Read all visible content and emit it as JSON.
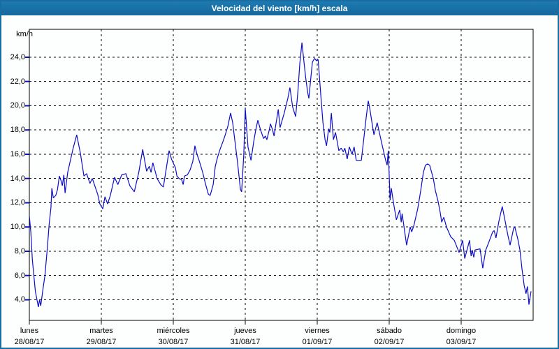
{
  "window": {
    "title": "Velocidad del viento [km/h] escala"
  },
  "y_axis": {
    "unit": "km/h",
    "tick_labels": [
      "24,0",
      "22,0",
      "20,0",
      "18,0",
      "16,0",
      "14,0",
      "12,0",
      "10,0",
      "8,0",
      "6,0",
      "4,0"
    ],
    "tick_values": [
      24,
      22,
      20,
      18,
      16,
      14,
      12,
      10,
      8,
      6,
      4
    ]
  },
  "x_axis": {
    "days": [
      {
        "name": "lunes",
        "date": "28/08/17"
      },
      {
        "name": "martes",
        "date": "29/08/17"
      },
      {
        "name": "miércoles",
        "date": "30/08/17"
      },
      {
        "name": "jueves",
        "date": "31/08/17"
      },
      {
        "name": "viernes",
        "date": "01/09/17"
      },
      {
        "name": "sábado",
        "date": "02/09/17"
      },
      {
        "name": "domingo",
        "date": "03/09/17"
      }
    ]
  },
  "colors": {
    "titlebar_blue": "#1a6da2",
    "border_blue": "#1a6da2",
    "line_blue": "#0d0dc8",
    "grid_black": "#000000",
    "background": "#fdfefe"
  },
  "chart_data": {
    "type": "line",
    "title": "Velocidad del viento [km/h] escala",
    "ylabel": "km/h",
    "xlabel": "",
    "ylim": [
      2.3,
      26.3
    ],
    "xlim_hours": [
      0,
      168
    ],
    "hours_per_day": 24,
    "y_gridlines": [
      4,
      6,
      8,
      10,
      12,
      14,
      16,
      18,
      20,
      22,
      24
    ],
    "grid": "dashed",
    "legend": "none",
    "categories": [
      "lunes 28/08/17",
      "martes 29/08/17",
      "miércoles 30/08/17",
      "jueves 31/08/17",
      "viernes 01/09/17",
      "sábado 02/09/17",
      "domingo 03/09/17"
    ],
    "series": [
      {
        "name": "Velocidad del viento [km/h]",
        "color": "#0d0dc8",
        "points": [
          [
            0,
            10.9
          ],
          [
            0.5,
            9.6
          ],
          [
            1,
            7.3
          ],
          [
            2,
            4.7
          ],
          [
            3,
            3.4
          ],
          [
            3.4,
            4.0
          ],
          [
            3.8,
            3.5
          ],
          [
            4.5,
            4.8
          ],
          [
            5.2,
            6.0
          ],
          [
            6,
            8.3
          ],
          [
            6.6,
            10.2
          ],
          [
            7.2,
            11.6
          ],
          [
            7.5,
            13.2
          ],
          [
            8,
            12.4
          ],
          [
            8.8,
            12.6
          ],
          [
            9.4,
            13.1
          ],
          [
            10,
            14.2
          ],
          [
            10.6,
            13.8
          ],
          [
            11,
            13.4
          ],
          [
            11.5,
            14.3
          ],
          [
            11.9,
            12.8
          ],
          [
            12.8,
            14.5
          ],
          [
            13.6,
            15.4
          ],
          [
            14.6,
            16.5
          ],
          [
            15.8,
            17.6
          ],
          [
            17,
            16.1
          ],
          [
            18.2,
            14.2
          ],
          [
            19.1,
            14.4
          ],
          [
            20.2,
            13.6
          ],
          [
            21,
            14.0
          ],
          [
            22.8,
            12.7
          ],
          [
            23.5,
            11.9
          ],
          [
            24.5,
            11.5
          ],
          [
            25.2,
            12.5
          ],
          [
            26.1,
            11.9
          ],
          [
            27,
            12.6
          ],
          [
            28.4,
            14.1
          ],
          [
            29.5,
            13.5
          ],
          [
            30.8,
            14.3
          ],
          [
            32.2,
            14.4
          ],
          [
            33.5,
            13.4
          ],
          [
            35,
            12.9
          ],
          [
            36.5,
            14.5
          ],
          [
            37.8,
            16.4
          ],
          [
            39.1,
            14.6
          ],
          [
            40,
            15.0
          ],
          [
            40.6,
            14.5
          ],
          [
            41.2,
            15.3
          ],
          [
            42.6,
            14.0
          ],
          [
            43.8,
            13.5
          ],
          [
            44.7,
            13.3
          ],
          [
            46.6,
            16.3
          ],
          [
            47.4,
            15.6
          ],
          [
            48.7,
            14.9
          ],
          [
            49.2,
            14.2
          ],
          [
            49.9,
            14.0
          ],
          [
            50.8,
            13.9
          ],
          [
            51.3,
            13.5
          ],
          [
            51.7,
            14.2
          ],
          [
            52.7,
            14.3
          ],
          [
            53.6,
            14.7
          ],
          [
            54.5,
            15.4
          ],
          [
            55.2,
            16.7
          ],
          [
            55.9,
            16.0
          ],
          [
            56.6,
            15.5
          ],
          [
            57.8,
            14.5
          ],
          [
            58.7,
            13.6
          ],
          [
            59.7,
            12.7
          ],
          [
            60.3,
            12.6
          ],
          [
            61.3,
            13.5
          ],
          [
            62,
            15.0
          ],
          [
            62.7,
            15.7
          ],
          [
            63.6,
            16.4
          ],
          [
            64.5,
            17.0
          ],
          [
            65.2,
            17.5
          ],
          [
            66.2,
            18.3
          ],
          [
            67.1,
            19.4
          ],
          [
            67.8,
            18.6
          ],
          [
            68.3,
            17.6
          ],
          [
            69.4,
            15.4
          ],
          [
            70.4,
            13.1
          ],
          [
            70.8,
            12.9
          ],
          [
            71.5,
            16.0
          ],
          [
            72,
            19.8
          ],
          [
            72.9,
            16.6
          ],
          [
            73.9,
            15.5
          ],
          [
            74.8,
            17.0
          ],
          [
            75.5,
            18.0
          ],
          [
            76.2,
            18.8
          ],
          [
            77.1,
            18.0
          ],
          [
            78.1,
            17.3
          ],
          [
            78.7,
            17.5
          ],
          [
            79.2,
            17.2
          ],
          [
            79.9,
            17.9
          ],
          [
            80.4,
            18.5
          ],
          [
            81.1,
            18.0
          ],
          [
            81.6,
            17.5
          ],
          [
            82.3,
            18.6
          ],
          [
            83,
            19.7
          ],
          [
            83.6,
            18.2
          ],
          [
            85,
            19.4
          ],
          [
            86.2,
            20.6
          ],
          [
            86.9,
            21.5
          ],
          [
            87.8,
            19.9
          ],
          [
            88.8,
            19.1
          ],
          [
            89.5,
            21.0
          ],
          [
            90.2,
            23.5
          ],
          [
            90.9,
            25.2
          ],
          [
            91.4,
            24.0
          ],
          [
            92.1,
            22.4
          ],
          [
            92.8,
            21.1
          ],
          [
            93.2,
            20.6
          ],
          [
            93.9,
            22.4
          ],
          [
            94.4,
            23.6
          ],
          [
            95.1,
            23.9
          ],
          [
            95.8,
            23.7
          ],
          [
            96.3,
            23.8
          ],
          [
            96.8,
            22.2
          ],
          [
            97.3,
            20.5
          ],
          [
            97.9,
            18.6
          ],
          [
            98.6,
            17.2
          ],
          [
            99.1,
            16.7
          ],
          [
            99.8,
            18.1
          ],
          [
            100.2,
            17.8
          ],
          [
            100.7,
            19.4
          ],
          [
            101.4,
            17.2
          ],
          [
            102.1,
            17.8
          ],
          [
            103.2,
            16.3
          ],
          [
            104,
            16.5
          ],
          [
            104.7,
            16.2
          ],
          [
            105.2,
            16.5
          ],
          [
            106,
            15.6
          ],
          [
            106.7,
            16.6
          ],
          [
            107.6,
            16.0
          ],
          [
            108.3,
            16.6
          ],
          [
            109,
            15.5
          ],
          [
            110.7,
            15.5
          ],
          [
            111.4,
            17.0
          ],
          [
            112.3,
            19.0
          ],
          [
            113,
            20.4
          ],
          [
            113.5,
            19.8
          ],
          [
            114.9,
            17.6
          ],
          [
            116,
            18.6
          ],
          [
            117.7,
            16.7
          ],
          [
            118.8,
            15.5
          ],
          [
            119.3,
            15.1
          ],
          [
            119.7,
            16.3
          ],
          [
            120.3,
            12.2
          ],
          [
            120.7,
            13.2
          ],
          [
            121.5,
            11.9
          ],
          [
            122.4,
            10.6
          ],
          [
            123.5,
            11.4
          ],
          [
            124,
            10.4
          ],
          [
            124.3,
            11.1
          ],
          [
            125.8,
            8.5
          ],
          [
            127,
            10.0
          ],
          [
            127.5,
            9.6
          ],
          [
            128.2,
            10.1
          ],
          [
            129.5,
            11.5
          ],
          [
            130.5,
            13.0
          ],
          [
            131.4,
            14.5
          ],
          [
            132.1,
            15.1
          ],
          [
            132.8,
            15.2
          ],
          [
            133.5,
            15.1
          ],
          [
            134.7,
            14.0
          ],
          [
            135.4,
            13.0
          ],
          [
            136.3,
            12.1
          ],
          [
            137,
            11.2
          ],
          [
            137.5,
            10.4
          ],
          [
            138.2,
            10.8
          ],
          [
            139.1,
            10.0
          ],
          [
            140.5,
            9.2
          ],
          [
            141.7,
            8.9
          ],
          [
            143.3,
            7.9
          ],
          [
            144.5,
            8.9
          ],
          [
            145.2,
            7.4
          ],
          [
            146.8,
            8.9
          ],
          [
            147.3,
            7.6
          ],
          [
            147.7,
            8.1
          ],
          [
            148.2,
            7.5
          ],
          [
            148.6,
            8.1
          ],
          [
            150.3,
            8.2
          ],
          [
            151.2,
            6.6
          ],
          [
            152.2,
            8.1
          ],
          [
            153.3,
            8.8
          ],
          [
            154.5,
            9.6
          ],
          [
            155,
            9.7
          ],
          [
            155.6,
            9.1
          ],
          [
            156.6,
            10.5
          ],
          [
            157.7,
            11.7
          ],
          [
            158.9,
            10.2
          ],
          [
            159.6,
            9.3
          ],
          [
            160.3,
            8.5
          ],
          [
            161.5,
            9.9
          ],
          [
            161.9,
            10.0
          ],
          [
            162.9,
            9.0
          ],
          [
            163.6,
            8.1
          ],
          [
            164.3,
            6.5
          ],
          [
            165,
            5.2
          ],
          [
            165.6,
            4.5
          ],
          [
            166.1,
            5.1
          ],
          [
            166.6,
            3.6
          ],
          [
            167.3,
            4.7
          ]
        ]
      }
    ]
  }
}
